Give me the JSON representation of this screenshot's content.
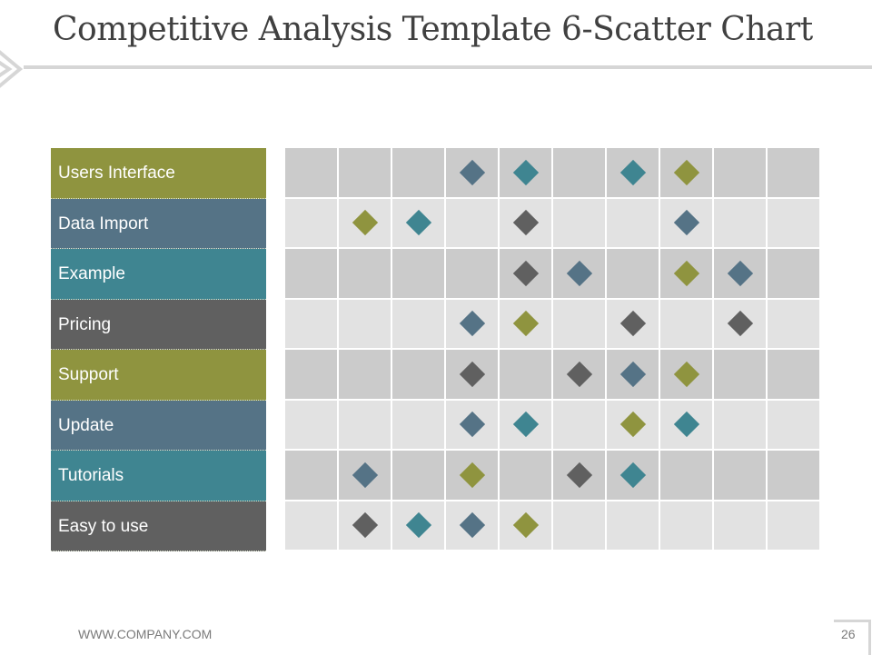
{
  "title": "Competitive Analysis Template 6-Scatter Chart",
  "footer": {
    "website": "WWW.COMPANY.COM",
    "page_number": "26"
  },
  "colors": {
    "olive": "#8f943f",
    "slate": "#557386",
    "teal": "#3f8591",
    "gray": "#606060",
    "cell_dark": "#cbcbcb",
    "cell_light": "#e2e2e2"
  },
  "chart_data": {
    "type": "scatter",
    "title": "Competitive Analysis Template 6-Scatter Chart",
    "rows": [
      "Users Interface",
      "Data Import",
      "Example",
      "Pricing",
      "Support",
      "Update",
      "Tutorials",
      "Easy to use"
    ],
    "row_colors": [
      "olive",
      "slate",
      "teal",
      "gray",
      "olive",
      "slate",
      "teal",
      "gray"
    ],
    "columns": 10,
    "points": [
      {
        "row": 0,
        "col": 3,
        "color": "slate"
      },
      {
        "row": 0,
        "col": 4,
        "color": "teal"
      },
      {
        "row": 0,
        "col": 6,
        "color": "teal"
      },
      {
        "row": 0,
        "col": 7,
        "color": "olive"
      },
      {
        "row": 1,
        "col": 1,
        "color": "olive"
      },
      {
        "row": 1,
        "col": 2,
        "color": "teal"
      },
      {
        "row": 1,
        "col": 4,
        "color": "gray"
      },
      {
        "row": 1,
        "col": 7,
        "color": "slate"
      },
      {
        "row": 2,
        "col": 4,
        "color": "gray"
      },
      {
        "row": 2,
        "col": 5,
        "color": "slate"
      },
      {
        "row": 2,
        "col": 7,
        "color": "olive"
      },
      {
        "row": 2,
        "col": 8,
        "color": "slate"
      },
      {
        "row": 3,
        "col": 3,
        "color": "slate"
      },
      {
        "row": 3,
        "col": 4,
        "color": "olive"
      },
      {
        "row": 3,
        "col": 6,
        "color": "gray"
      },
      {
        "row": 3,
        "col": 8,
        "color": "gray"
      },
      {
        "row": 4,
        "col": 3,
        "color": "gray"
      },
      {
        "row": 4,
        "col": 5,
        "color": "gray"
      },
      {
        "row": 4,
        "col": 6,
        "color": "slate"
      },
      {
        "row": 4,
        "col": 7,
        "color": "olive"
      },
      {
        "row": 5,
        "col": 3,
        "color": "slate"
      },
      {
        "row": 5,
        "col": 4,
        "color": "teal"
      },
      {
        "row": 5,
        "col": 6,
        "color": "olive"
      },
      {
        "row": 5,
        "col": 7,
        "color": "teal"
      },
      {
        "row": 6,
        "col": 1,
        "color": "slate"
      },
      {
        "row": 6,
        "col": 3,
        "color": "olive"
      },
      {
        "row": 6,
        "col": 5,
        "color": "gray"
      },
      {
        "row": 6,
        "col": 6,
        "color": "teal"
      },
      {
        "row": 7,
        "col": 1,
        "color": "gray"
      },
      {
        "row": 7,
        "col": 2,
        "color": "teal"
      },
      {
        "row": 7,
        "col": 3,
        "color": "slate"
      },
      {
        "row": 7,
        "col": 4,
        "color": "olive"
      }
    ]
  }
}
